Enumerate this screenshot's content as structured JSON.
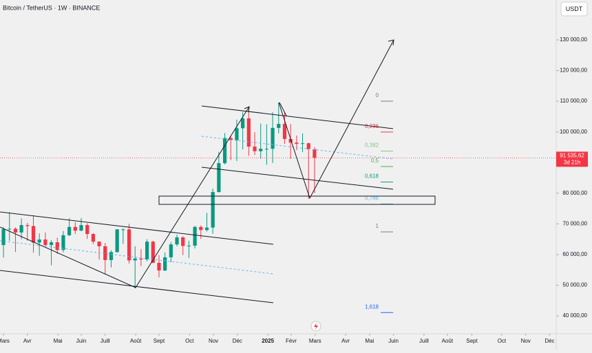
{
  "chart_data": {
    "type": "candlestick",
    "title": "Bitcoin / TetherUS · 1W · BINANCE",
    "currency": "USDT",
    "categories": [
      null,
      null,
      null,
      null,
      null,
      null,
      null,
      null,
      null,
      null,
      null,
      null,
      null,
      null,
      null,
      null,
      null,
      null,
      null,
      null,
      null,
      null,
      null,
      null,
      null,
      null,
      null,
      null,
      null,
      null,
      null,
      null,
      null,
      null,
      null,
      null,
      null,
      null,
      null,
      null,
      null,
      null,
      null,
      null,
      null,
      null,
      null,
      null,
      null,
      null,
      null,
      null,
      null
    ],
    "open": [
      63100,
      68300,
      68400,
      67200,
      69600,
      69300,
      63900,
      64900,
      63100,
      64000,
      61500,
      66300,
      69000,
      67800,
      69600,
      66700,
      64200,
      62700,
      58200,
      60800,
      68200,
      68200,
      58100,
      58700,
      58400,
      64200,
      57300,
      54800,
      59100,
      63300,
      65600,
      62800,
      62900,
      69000,
      68000,
      68800,
      80400,
      89800,
      98000,
      97300,
      101200,
      104400,
      95200,
      93700,
      94500,
      94500,
      101300,
      102600,
      97700,
      96500,
      96100,
      96300,
      94300
    ],
    "high": [
      69000,
      73800,
      68900,
      71800,
      70300,
      72800,
      66900,
      67200,
      64700,
      65500,
      67700,
      71900,
      70600,
      71900,
      70200,
      67000,
      64400,
      63800,
      61400,
      68300,
      68500,
      70000,
      62700,
      61800,
      65000,
      64500,
      59800,
      60700,
      64100,
      66500,
      66000,
      64500,
      69400,
      69500,
      73600,
      81500,
      93500,
      99600,
      98700,
      104000,
      106500,
      108300,
      99900,
      102700,
      102500,
      106400,
      109600,
      106400,
      102500,
      98800,
      99500,
      96500,
      95000
    ],
    "low": [
      59000,
      64500,
      60800,
      65000,
      64500,
      60600,
      59600,
      62700,
      56500,
      60200,
      60700,
      66000,
      66700,
      67600,
      65100,
      63400,
      58400,
      53500,
      55800,
      60600,
      63500,
      57100,
      49000,
      56200,
      57800,
      57200,
      52600,
      54600,
      57500,
      62700,
      59800,
      58900,
      62000,
      65100,
      67500,
      66800,
      80200,
      89400,
      90800,
      90500,
      94300,
      92200,
      92500,
      91200,
      89300,
      89900,
      99500,
      96100,
      91200,
      94100,
      93400,
      78200,
      80000
    ],
    "close": [
      68300,
      68400,
      67200,
      69600,
      69300,
      63900,
      64900,
      63100,
      64000,
      61500,
      66300,
      69000,
      67800,
      69600,
      66700,
      64200,
      62700,
      58200,
      60800,
      68200,
      68200,
      58100,
      58700,
      58400,
      64200,
      57300,
      54800,
      59100,
      63300,
      65600,
      62800,
      62900,
      69000,
      68000,
      68800,
      80400,
      89800,
      98000,
      97300,
      101200,
      104400,
      95200,
      93700,
      94500,
      94500,
      101300,
      102600,
      97700,
      96500,
      96100,
      96300,
      94300,
      91535.62
    ],
    "up_color": "#089981",
    "down_color": "#f23645",
    "xlim": [
      -0.58,
      92.4
    ],
    "xticks": [
      {
        "value": 0,
        "label": "Mars"
      },
      {
        "value": 4.0,
        "label": "Avr"
      },
      {
        "value": 9.1,
        "label": "Mai"
      },
      {
        "value": 13,
        "label": "Juin"
      },
      {
        "value": 17,
        "label": "Juill"
      },
      {
        "value": 22.1,
        "label": "Août"
      },
      {
        "value": 26,
        "label": "Sept"
      },
      {
        "value": 31.1,
        "label": "Oct"
      },
      {
        "value": 35.1,
        "label": "Nov"
      },
      {
        "value": 39.1,
        "label": "Déc"
      },
      {
        "value": 44.2,
        "label": "2025"
      },
      {
        "value": 48.1,
        "label": "Févr"
      },
      {
        "value": 52.1,
        "label": "Mars"
      },
      {
        "value": 57.2,
        "label": "Avr"
      },
      {
        "value": 61.2,
        "label": "Mai"
      },
      {
        "value": 65.2,
        "label": "Juin"
      },
      {
        "value": 70.3,
        "label": "Juill"
      },
      {
        "value": 74.2,
        "label": "Août"
      },
      {
        "value": 78.3,
        "label": "Sept"
      },
      {
        "value": 83.3,
        "label": "Oct"
      },
      {
        "value": 87.3,
        "label": "Nov"
      },
      {
        "value": 91.3,
        "label": "Déc"
      }
    ],
    "ylim": [
      34174,
      143016
    ],
    "yticks": [
      {
        "value": 40000,
        "label": "40 000,00"
      },
      {
        "value": 50000,
        "label": "50 000,00"
      },
      {
        "value": 60000,
        "label": "60 000,00"
      },
      {
        "value": 70000,
        "label": "70 000,00"
      },
      {
        "value": 80000,
        "label": "80 000,00"
      },
      {
        "value": 90000,
        "label": "90 000,00"
      },
      {
        "value": 100000,
        "label": "100 000,00"
      },
      {
        "value": 110000,
        "label": "110 000,00"
      },
      {
        "value": 120000,
        "label": "120 000,00"
      },
      {
        "value": 130000,
        "label": "130 000,00"
      }
    ],
    "last_price": {
      "value": 91535.62,
      "label": "91 535,62"
    },
    "countdown": "3d 21h",
    "fib_levels": [
      {
        "label": "0",
        "value": 110030,
        "color": "#787b86"
      },
      {
        "label": "0,236",
        "value": 99950,
        "color": "#f23645"
      },
      {
        "label": "0,382",
        "value": 93730,
        "color": "#81c784"
      },
      {
        "label": "0,5",
        "value": 88700,
        "color": "#4caf50"
      },
      {
        "label": "0,618",
        "value": 83670,
        "color": "#089981"
      },
      {
        "label": "0,786",
        "value": 76500,
        "color": "#64b5f6"
      },
      {
        "label": "1",
        "value": 67400,
        "color": "#787b86"
      },
      {
        "label": "1,618",
        "value": 41070,
        "color": "#2962ff"
      }
    ],
    "grid": false
  }
}
